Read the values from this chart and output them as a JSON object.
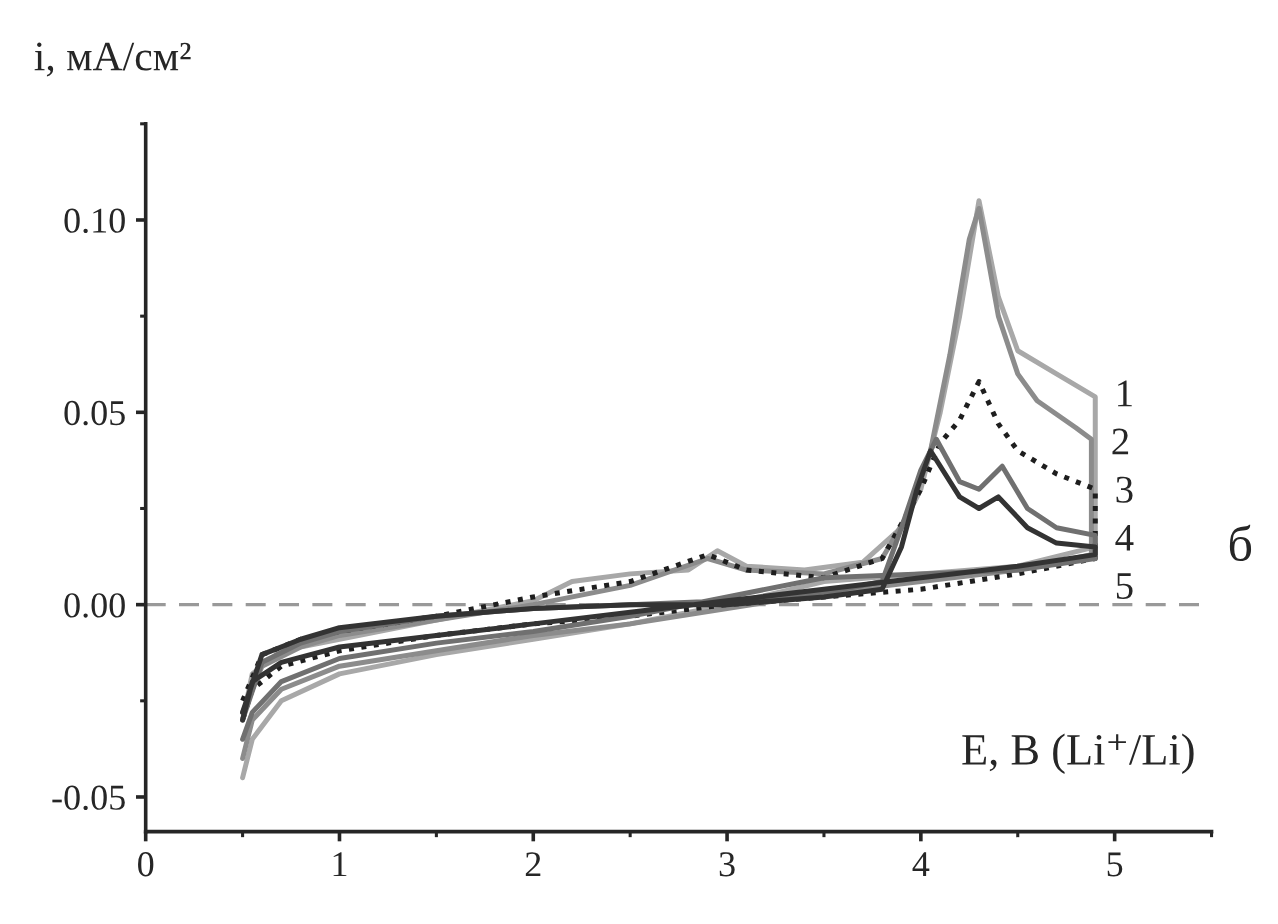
{
  "chart_data": {
    "type": "line",
    "ylabel": "i, мА/см²",
    "xlabel": "E, В (Li⁺/Li)",
    "annotations": [
      "б"
    ],
    "xlim": [
      0,
      5.5
    ],
    "ylim": [
      -0.059,
      0.125
    ],
    "xticks": [
      0,
      1,
      2,
      3,
      4,
      5
    ],
    "yticks": [
      {
        "value": -0.05,
        "label": "-0.05"
      },
      {
        "value": 0,
        "label": "0.00"
      },
      {
        "value": 0.05,
        "label": "0.05"
      },
      {
        "value": 0.1,
        "label": "0.10"
      }
    ],
    "grid": false,
    "marker": "none",
    "ref_lines": [
      {
        "axis": "y",
        "value": 0,
        "color": "#999999",
        "line_style": "dashed"
      }
    ],
    "series": [
      {
        "name": "1",
        "color": "#a8a8a8",
        "line_style": "solid",
        "x": [
          0.5,
          0.55,
          0.7,
          1.0,
          1.5,
          2.0,
          2.2,
          2.5,
          2.8,
          2.95,
          3.1,
          3.4,
          3.7,
          3.9,
          4.0,
          4.1,
          4.2,
          4.3,
          4.4,
          4.5,
          4.7,
          4.9,
          4.9,
          4.5,
          4.0,
          3.5,
          3.0,
          2.5,
          2.0,
          1.5,
          1.0,
          0.7,
          0.55,
          0.5
        ],
        "values": [
          -0.03,
          -0.018,
          -0.012,
          -0.009,
          -0.004,
          0.001,
          0.006,
          0.008,
          0.009,
          0.014,
          0.01,
          0.009,
          0.011,
          0.02,
          0.03,
          0.05,
          0.075,
          0.105,
          0.08,
          0.066,
          0.06,
          0.054,
          0.015,
          0.01,
          0.008,
          0.006,
          0.0,
          -0.005,
          -0.009,
          -0.013,
          -0.018,
          -0.025,
          -0.035,
          -0.045
        ]
      },
      {
        "name": "2",
        "color": "#8c8c8c",
        "line_style": "solid",
        "x": [
          0.5,
          0.6,
          0.8,
          1.0,
          1.5,
          2.0,
          2.5,
          2.9,
          3.1,
          3.5,
          3.8,
          3.95,
          4.05,
          4.15,
          4.25,
          4.3,
          4.4,
          4.5,
          4.6,
          4.8,
          4.88,
          4.88,
          4.5,
          4.0,
          3.5,
          3.0,
          2.5,
          2.0,
          1.5,
          1.0,
          0.7,
          0.55,
          0.5
        ],
        "values": [
          -0.028,
          -0.016,
          -0.011,
          -0.008,
          -0.004,
          0.0,
          0.005,
          0.012,
          0.009,
          0.008,
          0.012,
          0.025,
          0.04,
          0.065,
          0.095,
          0.103,
          0.075,
          0.06,
          0.053,
          0.046,
          0.043,
          0.013,
          0.009,
          0.006,
          0.003,
          -0.001,
          -0.005,
          -0.008,
          -0.012,
          -0.016,
          -0.022,
          -0.03,
          -0.04
        ]
      },
      {
        "name": "3",
        "color": "#1e1e1e",
        "line_style": "dotted",
        "x": [
          0.5,
          0.6,
          0.8,
          1.0,
          1.5,
          2.0,
          2.5,
          2.9,
          3.1,
          3.5,
          3.8,
          4.0,
          4.1,
          4.2,
          4.3,
          4.4,
          4.5,
          4.7,
          4.9,
          4.9,
          4.5,
          4.0,
          3.5,
          3.0,
          2.5,
          2.0,
          1.5,
          1.0,
          0.7,
          0.55,
          0.5
        ],
        "values": [
          -0.025,
          -0.013,
          -0.009,
          -0.007,
          -0.003,
          0.002,
          0.006,
          0.013,
          0.009,
          0.007,
          0.012,
          0.03,
          0.042,
          0.048,
          0.058,
          0.047,
          0.04,
          0.034,
          0.03,
          0.012,
          0.008,
          0.004,
          0.002,
          0.0,
          -0.003,
          -0.005,
          -0.008,
          -0.012,
          -0.016,
          -0.022,
          -0.03
        ]
      },
      {
        "name": "4",
        "color": "#707070",
        "line_style": "solid",
        "x": [
          0.5,
          0.6,
          0.8,
          1.0,
          1.5,
          2.0,
          2.5,
          3.0,
          3.5,
          3.8,
          3.9,
          4.0,
          4.08,
          4.2,
          4.3,
          4.42,
          4.55,
          4.7,
          4.9,
          4.9,
          4.5,
          4.0,
          3.5,
          3.0,
          2.5,
          2.0,
          1.5,
          1.0,
          0.7,
          0.55,
          0.5
        ],
        "values": [
          -0.03,
          -0.015,
          -0.01,
          -0.007,
          -0.003,
          -0.001,
          0.0,
          0.001,
          0.003,
          0.006,
          0.02,
          0.035,
          0.043,
          0.032,
          0.03,
          0.036,
          0.025,
          0.02,
          0.018,
          0.012,
          0.009,
          0.008,
          0.007,
          0.002,
          -0.003,
          -0.007,
          -0.01,
          -0.014,
          -0.02,
          -0.028,
          -0.035
        ]
      },
      {
        "name": "5",
        "color": "#333333",
        "line_style": "solid",
        "x": [
          0.5,
          0.6,
          0.8,
          1.0,
          1.5,
          2.0,
          2.5,
          3.0,
          3.5,
          3.8,
          3.9,
          3.98,
          4.05,
          4.2,
          4.3,
          4.4,
          4.55,
          4.7,
          4.9,
          4.9,
          4.5,
          4.0,
          3.5,
          3.0,
          2.5,
          2.0,
          1.5,
          1.0,
          0.7,
          0.55,
          0.5
        ],
        "values": [
          -0.028,
          -0.013,
          -0.009,
          -0.006,
          -0.003,
          -0.001,
          0.0,
          0.0,
          0.002,
          0.004,
          0.015,
          0.03,
          0.04,
          0.028,
          0.025,
          0.028,
          0.02,
          0.016,
          0.015,
          0.013,
          0.01,
          0.007,
          0.004,
          0.001,
          -0.002,
          -0.005,
          -0.008,
          -0.011,
          -0.015,
          -0.02,
          -0.03
        ]
      }
    ]
  }
}
